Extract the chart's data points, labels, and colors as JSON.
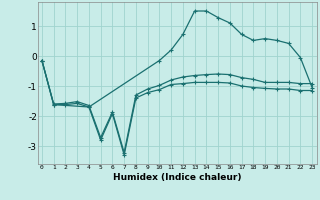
{
  "title": "",
  "xlabel": "Humidex (Indice chaleur)",
  "bg_color": "#c8ece8",
  "line_color": "#1a7070",
  "grid_color": "#a0d4ce",
  "x_ticks": [
    0,
    1,
    2,
    3,
    4,
    5,
    6,
    7,
    8,
    9,
    10,
    11,
    12,
    13,
    14,
    15,
    16,
    17,
    18,
    19,
    20,
    21,
    22,
    23
  ],
  "y_ticks": [
    -3,
    -2,
    -1,
    0,
    1
  ],
  "ylim": [
    -3.6,
    1.8
  ],
  "xlim": [
    -0.3,
    23.4
  ],
  "series": [
    {
      "x": [
        0,
        1,
        2,
        3,
        4,
        5,
        6,
        7,
        8,
        9,
        10,
        11,
        12,
        13,
        14,
        15,
        16,
        17,
        18,
        19,
        20,
        21,
        22,
        23
      ],
      "y": [
        -0.15,
        -1.62,
        -1.62,
        -1.58,
        -1.7,
        -2.8,
        -1.92,
        -3.3,
        -1.4,
        -1.22,
        -1.12,
        -0.95,
        -0.92,
        -0.88,
        -0.88,
        -0.88,
        -0.9,
        -1.0,
        -1.05,
        -1.08,
        -1.1,
        -1.1,
        -1.15,
        -1.15
      ]
    },
    {
      "x": [
        0,
        1,
        2,
        3,
        4,
        5,
        6,
        7,
        8,
        9,
        10,
        11,
        12,
        13,
        14,
        15,
        16,
        17,
        18,
        19,
        20,
        21,
        22,
        23
      ],
      "y": [
        -0.15,
        -1.6,
        -1.58,
        -1.52,
        -1.65,
        -2.72,
        -1.87,
        -3.22,
        -1.3,
        -1.1,
        -0.98,
        -0.8,
        -0.7,
        -0.65,
        -0.62,
        -0.6,
        -0.62,
        -0.72,
        -0.78,
        -0.88,
        -0.88,
        -0.88,
        -0.92,
        -0.92
      ]
    },
    {
      "x": [
        0,
        1,
        4,
        10,
        11,
        12,
        13,
        14,
        15,
        16,
        17,
        18,
        19,
        20,
        21,
        22,
        23
      ],
      "y": [
        -0.15,
        -1.62,
        -1.7,
        -0.15,
        0.2,
        0.72,
        1.5,
        1.5,
        1.28,
        1.1,
        0.72,
        0.52,
        0.58,
        0.52,
        0.42,
        -0.05,
        -1.05
      ]
    }
  ]
}
